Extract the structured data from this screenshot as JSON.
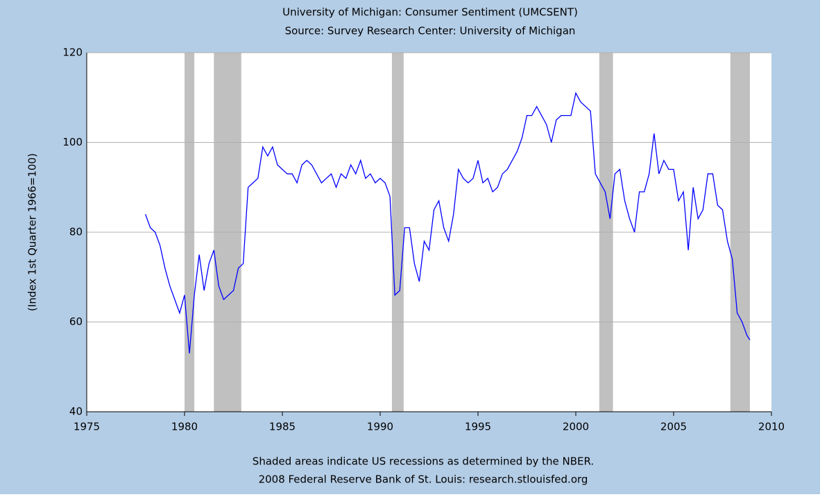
{
  "chart_data": {
    "type": "line",
    "title": "University of Michigan: Consumer Sentiment (UMCSENT)",
    "subtitle": "Source: Survey Research Center: University of Michigan",
    "y_label": "(Index 1st Quarter 1966=100)",
    "footnote": "Shaded areas indicate US recessions as determined by the NBER.",
    "credit": "2008 Federal Reserve Bank of St. Louis: research.stlouisfed.org",
    "xlim": [
      1975,
      2010
    ],
    "xticks": [
      1975,
      1980,
      1985,
      1990,
      1995,
      2000,
      2005,
      2010
    ],
    "ylim": [
      40,
      120
    ],
    "yticks": [
      40,
      60,
      80,
      100,
      120
    ],
    "grid": true,
    "recession_color": "#c0c0c0",
    "recessions": [
      [
        1980,
        1980.5
      ],
      [
        1981.5,
        1982.9
      ],
      [
        1990.6,
        1991.2
      ],
      [
        2001.2,
        2001.9
      ],
      [
        2007.9,
        2008.9
      ]
    ],
    "series": [
      {
        "color": "#0000ff",
        "x": [
          1978,
          1978.25,
          1978.5,
          1978.75,
          1979,
          1979.25,
          1979.5,
          1979.75,
          1980,
          1980.25,
          1980.5,
          1980.75,
          1981,
          1981.25,
          1981.5,
          1981.75,
          1982,
          1982.25,
          1982.5,
          1982.75,
          1983,
          1983.25,
          1983.5,
          1983.75,
          1984,
          1984.25,
          1984.5,
          1984.75,
          1985,
          1985.25,
          1985.5,
          1985.75,
          1986,
          1986.25,
          1986.5,
          1986.75,
          1987,
          1987.25,
          1987.5,
          1987.75,
          1988,
          1988.25,
          1988.5,
          1988.75,
          1989,
          1989.25,
          1989.5,
          1989.75,
          1990,
          1990.25,
          1990.5,
          1990.75,
          1991,
          1991.25,
          1991.5,
          1991.75,
          1992,
          1992.25,
          1992.5,
          1992.75,
          1993,
          1993.25,
          1993.5,
          1993.75,
          1994,
          1994.25,
          1994.5,
          1994.75,
          1995,
          1995.25,
          1995.5,
          1995.75,
          1996,
          1996.25,
          1996.5,
          1996.75,
          1997,
          1997.25,
          1997.5,
          1997.75,
          1998,
          1998.25,
          1998.5,
          1998.75,
          1999,
          1999.25,
          1999.5,
          1999.75,
          2000,
          2000.25,
          2000.5,
          2000.75,
          2001,
          2001.25,
          2001.5,
          2001.75,
          2002,
          2002.25,
          2002.5,
          2002.75,
          2003,
          2003.25,
          2003.5,
          2003.75,
          2004,
          2004.25,
          2004.5,
          2004.75,
          2005,
          2005.25,
          2005.5,
          2005.75,
          2006,
          2006.25,
          2006.5,
          2006.75,
          2007,
          2007.25,
          2007.5,
          2007.75,
          2008,
          2008.25,
          2008.5,
          2008.75,
          2008.9
        ],
        "values": [
          84,
          81,
          80,
          77,
          72,
          68,
          65,
          62,
          66,
          53,
          66,
          75,
          67,
          73,
          76,
          68,
          65,
          66,
          67,
          72,
          73,
          90,
          91,
          92,
          99,
          97,
          99,
          95,
          94,
          93,
          93,
          91,
          95,
          96,
          95,
          93,
          91,
          92,
          93,
          90,
          93,
          92,
          95,
          93,
          96,
          92,
          93,
          91,
          92,
          91,
          88,
          66,
          67,
          81,
          81,
          73,
          69,
          78,
          76,
          85,
          87,
          81,
          78,
          84,
          94,
          92,
          91,
          92,
          96,
          91,
          92,
          89,
          90,
          93,
          94,
          96,
          98,
          101,
          106,
          106,
          108,
          106,
          104,
          100,
          105,
          106,
          106,
          106,
          111,
          109,
          108,
          107,
          93,
          91,
          89,
          83,
          93,
          94,
          87,
          83,
          80,
          89,
          89,
          93,
          102,
          93,
          96,
          94,
          94,
          87,
          89,
          76,
          90,
          83,
          85,
          93,
          93,
          86,
          85,
          78,
          74,
          62,
          60,
          57,
          56
        ]
      }
    ]
  }
}
